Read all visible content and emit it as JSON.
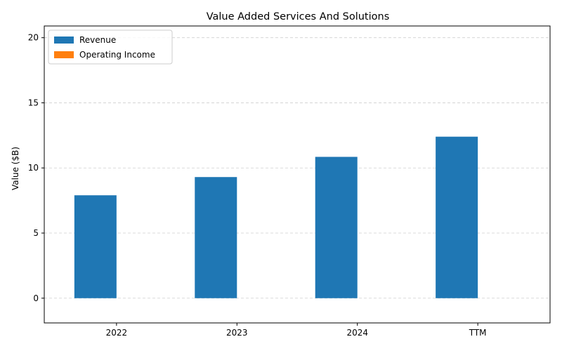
{
  "chart_data": {
    "type": "bar",
    "title": "Value Added Services And Solutions",
    "xlabel": "",
    "ylabel": "Value ($B)",
    "categories": [
      "2022",
      "2023",
      "2024",
      "TTM"
    ],
    "series": [
      {
        "name": "Revenue",
        "color": "#1f77b4",
        "values": [
          7.9,
          9.3,
          10.85,
          12.4
        ]
      },
      {
        "name": "Operating Income",
        "color": "#ff7f0e",
        "values": [
          0,
          0,
          0,
          0
        ]
      }
    ],
    "ylim": [
      -1.9,
      20.9
    ],
    "yticks": [
      0,
      5,
      10,
      15,
      20
    ],
    "grid": "y-dashed",
    "legend_position": "top-left"
  }
}
